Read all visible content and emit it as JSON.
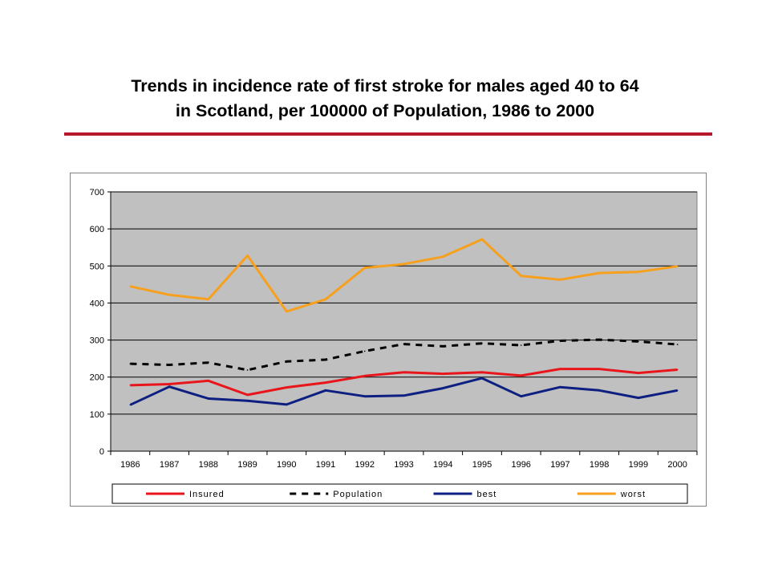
{
  "header": {
    "title_line1": "Trends in incidence rate of first stroke for males aged 40 to 64",
    "title_line2": "in Scotland,  per 100000 of Population, 1986 to 2000",
    "rule_color": "#b5172b"
  },
  "chart_data": {
    "type": "line",
    "title": "Trends in incidence rate of first stroke for males aged 40 to 64 in Scotland,  per 100000 of Population, 1986 to 2000",
    "xlabel": "",
    "ylabel": "",
    "categories": [
      "1986",
      "1987",
      "1988",
      "1989",
      "1990",
      "1991",
      "1992",
      "1993",
      "1994",
      "1995",
      "1996",
      "1997",
      "1998",
      "1999",
      "2000"
    ],
    "ylim": [
      0,
      700
    ],
    "yticks": [
      0,
      100,
      200,
      300,
      400,
      500,
      600,
      700
    ],
    "grid": true,
    "plot_background": "#c0c0c0",
    "legend_position": "bottom",
    "series": [
      {
        "name": "Insured",
        "color": "#e8161b",
        "dash": "solid",
        "values": [
          178,
          181,
          190,
          152,
          172,
          185,
          203,
          213,
          209,
          213,
          204,
          222,
          222,
          211,
          220
        ]
      },
      {
        "name": "Population",
        "color": "#000000",
        "dash": "dashed",
        "values": [
          236,
          233,
          239,
          219,
          242,
          247,
          270,
          289,
          283,
          291,
          286,
          298,
          301,
          296,
          288
        ]
      },
      {
        "name": "best",
        "color": "#0d1f80",
        "dash": "solid",
        "values": [
          125,
          174,
          142,
          136,
          126,
          164,
          148,
          150,
          170,
          197,
          148,
          173,
          164,
          144,
          164
        ]
      },
      {
        "name": "worst",
        "color": "#f7a01e",
        "dash": "solid",
        "values": [
          445,
          422,
          410,
          528,
          377,
          410,
          495,
          505,
          525,
          572,
          473,
          463,
          481,
          484,
          499
        ]
      }
    ]
  }
}
